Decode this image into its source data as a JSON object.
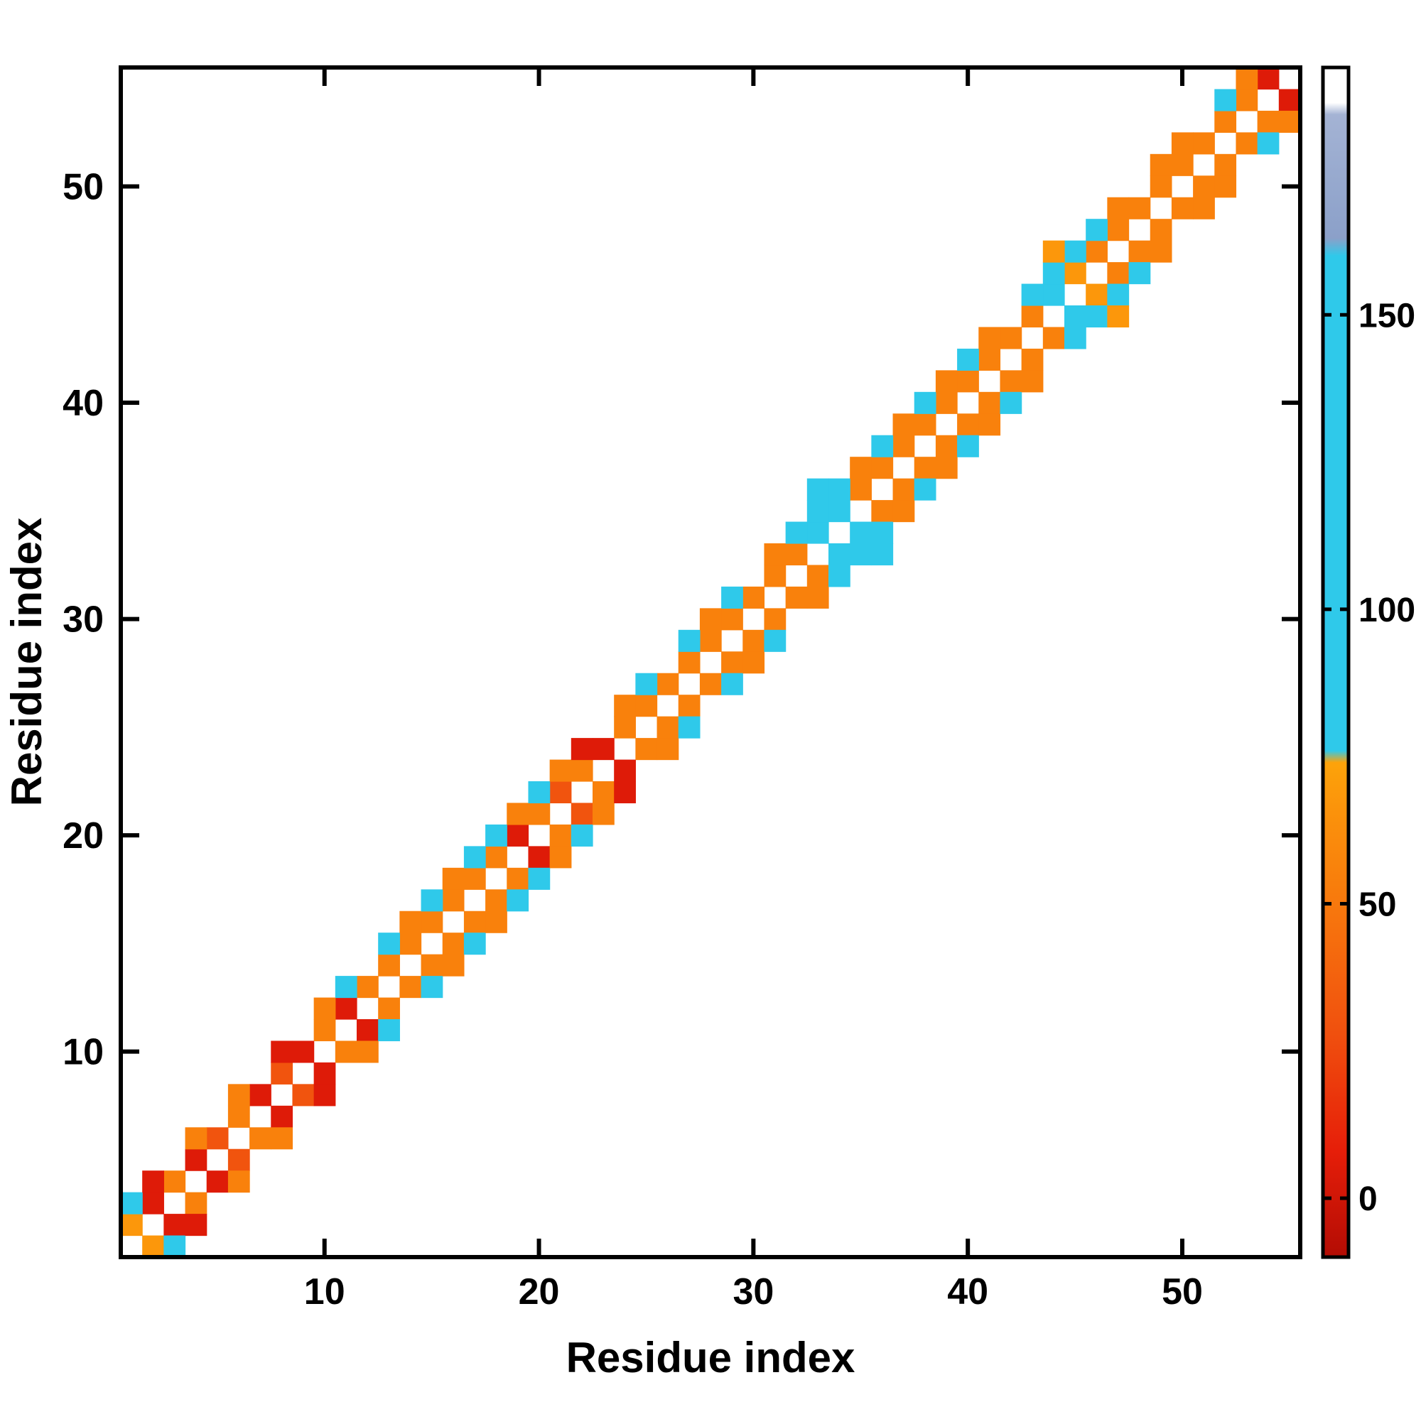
{
  "figure": {
    "background": "#ffffff",
    "frame_color": "#000000"
  },
  "chart_data": {
    "type": "heatmap",
    "title": "",
    "xlabel": "Residue index",
    "ylabel": "Residue index",
    "n_residues": 55,
    "x_range": [
      1,
      55
    ],
    "y_range": [
      1,
      55
    ],
    "axis_ticks": [
      10,
      20,
      30,
      40,
      50
    ],
    "grid": false,
    "symmetric": true,
    "colorbar": {
      "position": "right",
      "ticks": [
        0,
        50,
        100,
        150
      ],
      "vmin": -10,
      "vmax": 192,
      "stops": [
        {
          "v": -10,
          "c": "#b30c04"
        },
        {
          "v": 8,
          "c": "#e61e09"
        },
        {
          "v": 28,
          "c": "#f0500e"
        },
        {
          "v": 48,
          "c": "#f7750d"
        },
        {
          "v": 66,
          "c": "#fb930b"
        },
        {
          "v": 74,
          "c": "#fda30a"
        },
        {
          "v": 76,
          "c": "#2fc9ea"
        },
        {
          "v": 160,
          "c": "#2fc9ea"
        },
        {
          "v": 163,
          "c": "#8ba0c9"
        },
        {
          "v": 184,
          "c": "#a4b3d4"
        },
        {
          "v": 186,
          "c": "#ffffff"
        },
        {
          "v": 192,
          "c": "#ffffff"
        }
      ]
    },
    "cells": [
      [
        1,
        2,
        68
      ],
      [
        2,
        3,
        5
      ],
      [
        3,
        4,
        55
      ],
      [
        4,
        5,
        5
      ],
      [
        5,
        6,
        30
      ],
      [
        6,
        7,
        55
      ],
      [
        7,
        8,
        5
      ],
      [
        8,
        9,
        30
      ],
      [
        9,
        10,
        5
      ],
      [
        10,
        11,
        55
      ],
      [
        11,
        12,
        5
      ],
      [
        12,
        13,
        55
      ],
      [
        13,
        14,
        55
      ],
      [
        14,
        15,
        55
      ],
      [
        15,
        16,
        55
      ],
      [
        16,
        17,
        55
      ],
      [
        17,
        18,
        55
      ],
      [
        18,
        19,
        55
      ],
      [
        19,
        20,
        5
      ],
      [
        20,
        21,
        55
      ],
      [
        21,
        22,
        30
      ],
      [
        22,
        23,
        55
      ],
      [
        23,
        24,
        5
      ],
      [
        24,
        25,
        55
      ],
      [
        25,
        26,
        55
      ],
      [
        26,
        27,
        55
      ],
      [
        27,
        28,
        55
      ],
      [
        28,
        29,
        55
      ],
      [
        29,
        30,
        55
      ],
      [
        30,
        31,
        55
      ],
      [
        31,
        32,
        55
      ],
      [
        32,
        33,
        55
      ],
      [
        33,
        34,
        100
      ],
      [
        34,
        35,
        100
      ],
      [
        35,
        36,
        55
      ],
      [
        36,
        37,
        55
      ],
      [
        37,
        38,
        55
      ],
      [
        38,
        39,
        55
      ],
      [
        39,
        40,
        55
      ],
      [
        40,
        41,
        55
      ],
      [
        41,
        42,
        55
      ],
      [
        42,
        43,
        55
      ],
      [
        43,
        44,
        55
      ],
      [
        44,
        45,
        100
      ],
      [
        45,
        46,
        68
      ],
      [
        46,
        47,
        55
      ],
      [
        47,
        48,
        55
      ],
      [
        48,
        49,
        55
      ],
      [
        49,
        50,
        55
      ],
      [
        50,
        51,
        55
      ],
      [
        51,
        52,
        55
      ],
      [
        52,
        53,
        55
      ],
      [
        53,
        54,
        55
      ],
      [
        54,
        55,
        5
      ],
      [
        1,
        3,
        100
      ],
      [
        2,
        4,
        5
      ],
      [
        4,
        6,
        55
      ],
      [
        6,
        8,
        55
      ],
      [
        8,
        10,
        5
      ],
      [
        10,
        12,
        55
      ],
      [
        11,
        13,
        100
      ],
      [
        13,
        15,
        100
      ],
      [
        14,
        16,
        55
      ],
      [
        15,
        17,
        100
      ],
      [
        16,
        18,
        55
      ],
      [
        17,
        19,
        100
      ],
      [
        18,
        20,
        100
      ],
      [
        19,
        21,
        55
      ],
      [
        20,
        22,
        100
      ],
      [
        21,
        23,
        55
      ],
      [
        22,
        24,
        5
      ],
      [
        24,
        26,
        55
      ],
      [
        25,
        27,
        100
      ],
      [
        27,
        29,
        100
      ],
      [
        28,
        30,
        55
      ],
      [
        29,
        31,
        100
      ],
      [
        31,
        33,
        55
      ],
      [
        32,
        34,
        100
      ],
      [
        33,
        35,
        100
      ],
      [
        34,
        36,
        100
      ],
      [
        35,
        37,
        55
      ],
      [
        36,
        38,
        100
      ],
      [
        37,
        39,
        55
      ],
      [
        38,
        40,
        100
      ],
      [
        39,
        41,
        55
      ],
      [
        40,
        42,
        100
      ],
      [
        41,
        43,
        55
      ],
      [
        43,
        45,
        100
      ],
      [
        44,
        46,
        100
      ],
      [
        45,
        47,
        100
      ],
      [
        46,
        48,
        100
      ],
      [
        47,
        49,
        55
      ],
      [
        49,
        51,
        55
      ],
      [
        50,
        52,
        55
      ],
      [
        52,
        54,
        100
      ],
      [
        53,
        55,
        55
      ],
      [
        33,
        36,
        100
      ],
      [
        44,
        47,
        68
      ]
    ]
  }
}
